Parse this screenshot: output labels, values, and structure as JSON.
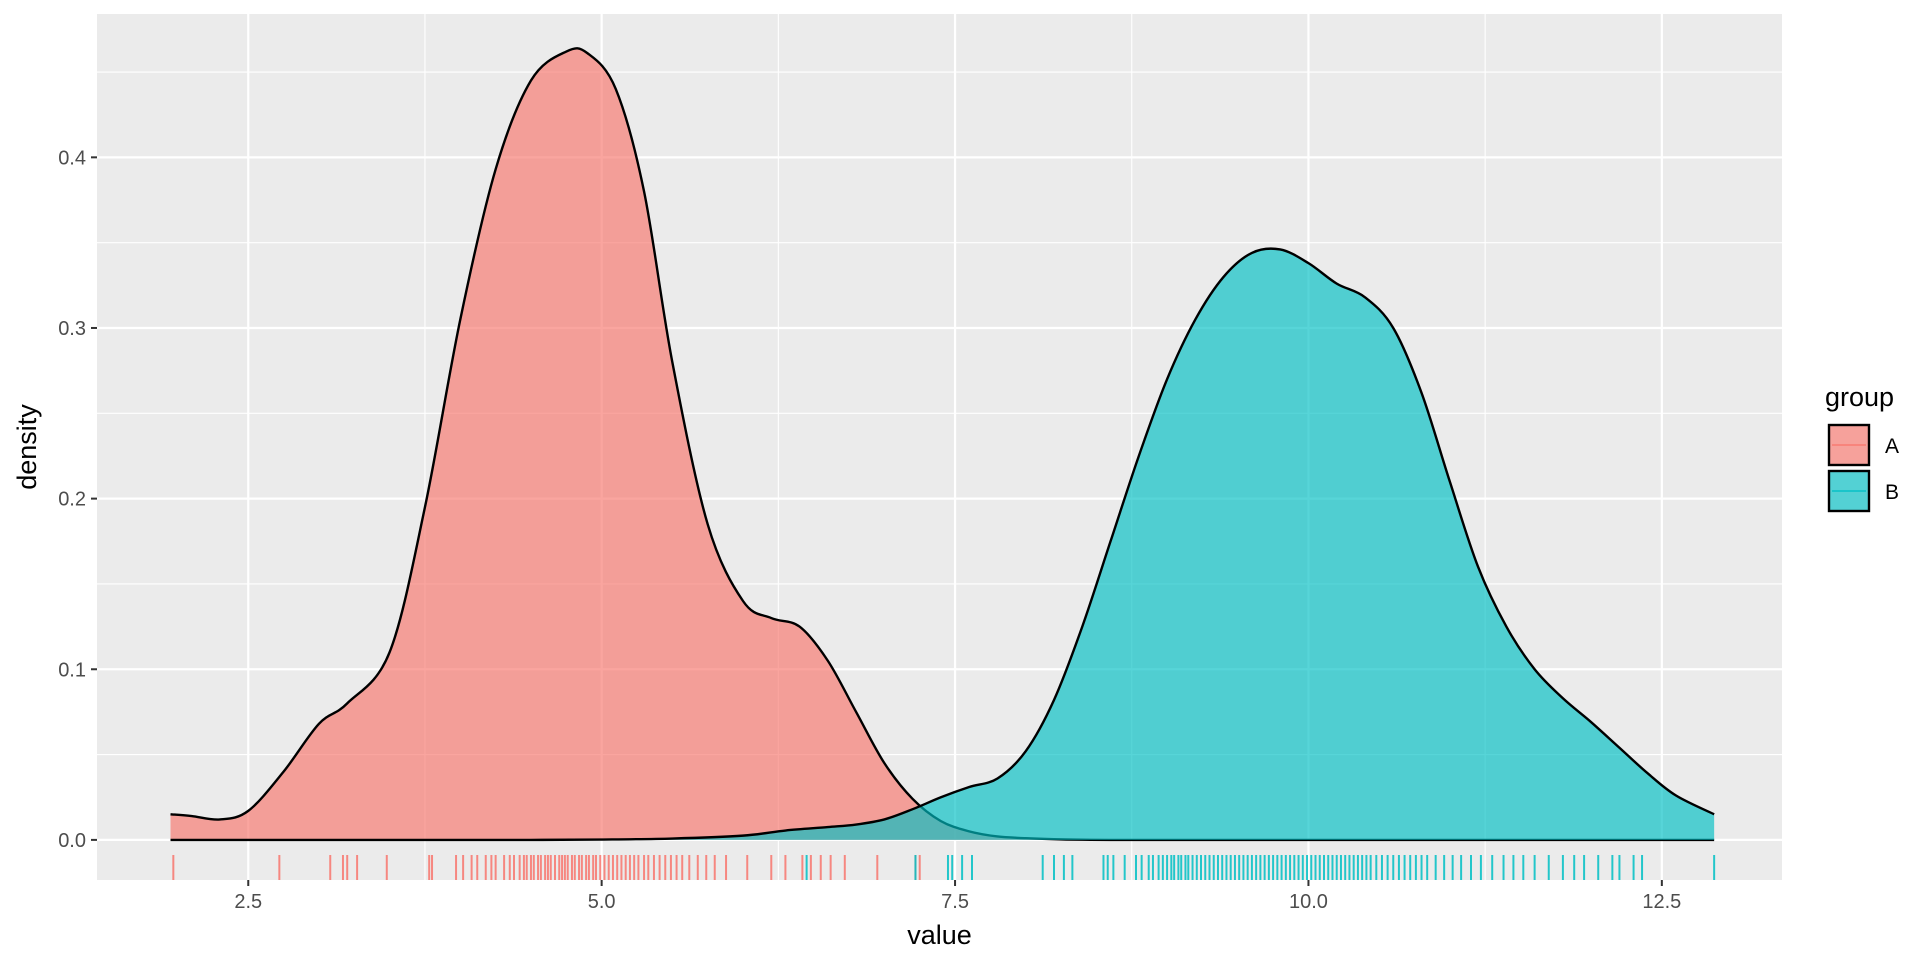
{
  "chart_data": {
    "type": "area",
    "subtype": "density-with-rug",
    "title": "",
    "xlabel": "value",
    "ylabel": "density",
    "xlim": [
      1.43,
      13.35
    ],
    "ylim": [
      -0.0235,
      0.484
    ],
    "x_ticks": [
      2.5,
      5.0,
      7.5,
      10.0,
      12.5
    ],
    "x_tick_labels": [
      "2.5",
      "5.0",
      "7.5",
      "10.0",
      "12.5"
    ],
    "y_ticks": [
      0.0,
      0.1,
      0.2,
      0.3,
      0.4
    ],
    "y_tick_labels": [
      "0.0",
      "0.1",
      "0.2",
      "0.3",
      "0.4"
    ],
    "grid": true,
    "legend": {
      "title": "group",
      "position": "right"
    },
    "series": [
      {
        "name": "A",
        "color": "#F8766D",
        "x": [
          1.95,
          2.1,
          2.3,
          2.5,
          2.75,
          3.0,
          3.2,
          3.5,
          3.75,
          4.0,
          4.25,
          4.5,
          4.75,
          4.9,
          5.1,
          5.3,
          5.5,
          5.75,
          6.0,
          6.2,
          6.4,
          6.6,
          6.8,
          7.0,
          7.2,
          7.4,
          7.6,
          7.8,
          8.0,
          8.2,
          8.4,
          8.6,
          9.0,
          10.0,
          11.0,
          12.0,
          12.87
        ],
        "y": [
          0.015,
          0.014,
          0.012,
          0.017,
          0.04,
          0.068,
          0.08,
          0.11,
          0.195,
          0.305,
          0.393,
          0.445,
          0.462,
          0.461,
          0.44,
          0.38,
          0.28,
          0.185,
          0.14,
          0.13,
          0.125,
          0.105,
          0.075,
          0.045,
          0.024,
          0.011,
          0.005,
          0.002,
          0.001,
          0.0004,
          0.0001,
          0.0,
          0.0,
          0.0,
          0.0,
          0.0,
          0.0
        ],
        "rug": [
          1.97,
          2.72,
          3.08,
          3.17,
          3.2,
          3.27,
          3.48,
          3.78,
          3.8,
          3.97,
          4.02,
          4.08,
          4.12,
          4.18,
          4.22,
          4.25,
          4.31,
          4.35,
          4.38,
          4.42,
          4.45,
          4.47,
          4.5,
          4.52,
          4.55,
          4.57,
          4.6,
          4.62,
          4.64,
          4.67,
          4.7,
          4.72,
          4.74,
          4.76,
          4.79,
          4.81,
          4.84,
          4.86,
          4.89,
          4.91,
          4.94,
          4.96,
          4.99,
          5.02,
          5.05,
          5.08,
          5.11,
          5.14,
          5.17,
          5.2,
          5.23,
          5.26,
          5.3,
          5.33,
          5.37,
          5.41,
          5.45,
          5.49,
          5.53,
          5.57,
          5.62,
          5.68,
          5.74,
          5.8,
          5.88,
          6.03,
          6.2,
          6.3,
          6.42,
          6.48,
          6.55,
          6.62,
          6.72,
          6.95,
          7.22,
          7.25
        ]
      },
      {
        "name": "B",
        "color": "#00BFC4",
        "x": [
          1.95,
          2.5,
          3.0,
          3.5,
          4.0,
          4.5,
          5.0,
          5.5,
          6.0,
          6.3,
          6.6,
          6.8,
          7.0,
          7.2,
          7.4,
          7.6,
          7.8,
          8.0,
          8.2,
          8.4,
          8.6,
          8.8,
          9.0,
          9.2,
          9.4,
          9.6,
          9.8,
          10.0,
          10.2,
          10.4,
          10.6,
          10.8,
          11.0,
          11.2,
          11.4,
          11.6,
          11.8,
          12.0,
          12.2,
          12.4,
          12.6,
          12.87
        ],
        "y": [
          0.0,
          0.0,
          0.0,
          0.0,
          0.0,
          0.0,
          0.0002,
          0.0008,
          0.0025,
          0.0055,
          0.0075,
          0.009,
          0.012,
          0.018,
          0.025,
          0.031,
          0.036,
          0.052,
          0.082,
          0.125,
          0.175,
          0.225,
          0.27,
          0.305,
          0.33,
          0.344,
          0.346,
          0.338,
          0.326,
          0.318,
          0.3,
          0.262,
          0.21,
          0.16,
          0.125,
          0.1,
          0.083,
          0.069,
          0.054,
          0.039,
          0.026,
          0.015
        ],
        "rug": [
          6.45,
          7.22,
          7.45,
          7.48,
          7.55,
          7.62,
          8.12,
          8.2,
          8.27,
          8.33,
          8.55,
          8.58,
          8.62,
          8.7,
          8.78,
          8.82,
          8.87,
          8.9,
          8.94,
          8.97,
          9.0,
          9.03,
          9.05,
          9.08,
          9.1,
          9.13,
          9.15,
          9.18,
          9.21,
          9.24,
          9.27,
          9.3,
          9.33,
          9.36,
          9.39,
          9.42,
          9.45,
          9.48,
          9.51,
          9.54,
          9.57,
          9.6,
          9.63,
          9.66,
          9.69,
          9.72,
          9.75,
          9.78,
          9.81,
          9.84,
          9.87,
          9.9,
          9.93,
          9.96,
          9.99,
          10.02,
          10.05,
          10.08,
          10.11,
          10.14,
          10.17,
          10.2,
          10.23,
          10.26,
          10.29,
          10.32,
          10.35,
          10.38,
          10.41,
          10.44,
          10.48,
          10.52,
          10.56,
          10.6,
          10.64,
          10.68,
          10.72,
          10.76,
          10.8,
          10.84,
          10.9,
          10.96,
          11.02,
          11.08,
          11.15,
          11.22,
          11.3,
          11.38,
          11.45,
          11.52,
          11.6,
          11.7,
          11.8,
          11.88,
          11.95,
          12.05,
          12.15,
          12.2,
          12.3,
          12.36,
          12.87
        ]
      }
    ]
  }
}
